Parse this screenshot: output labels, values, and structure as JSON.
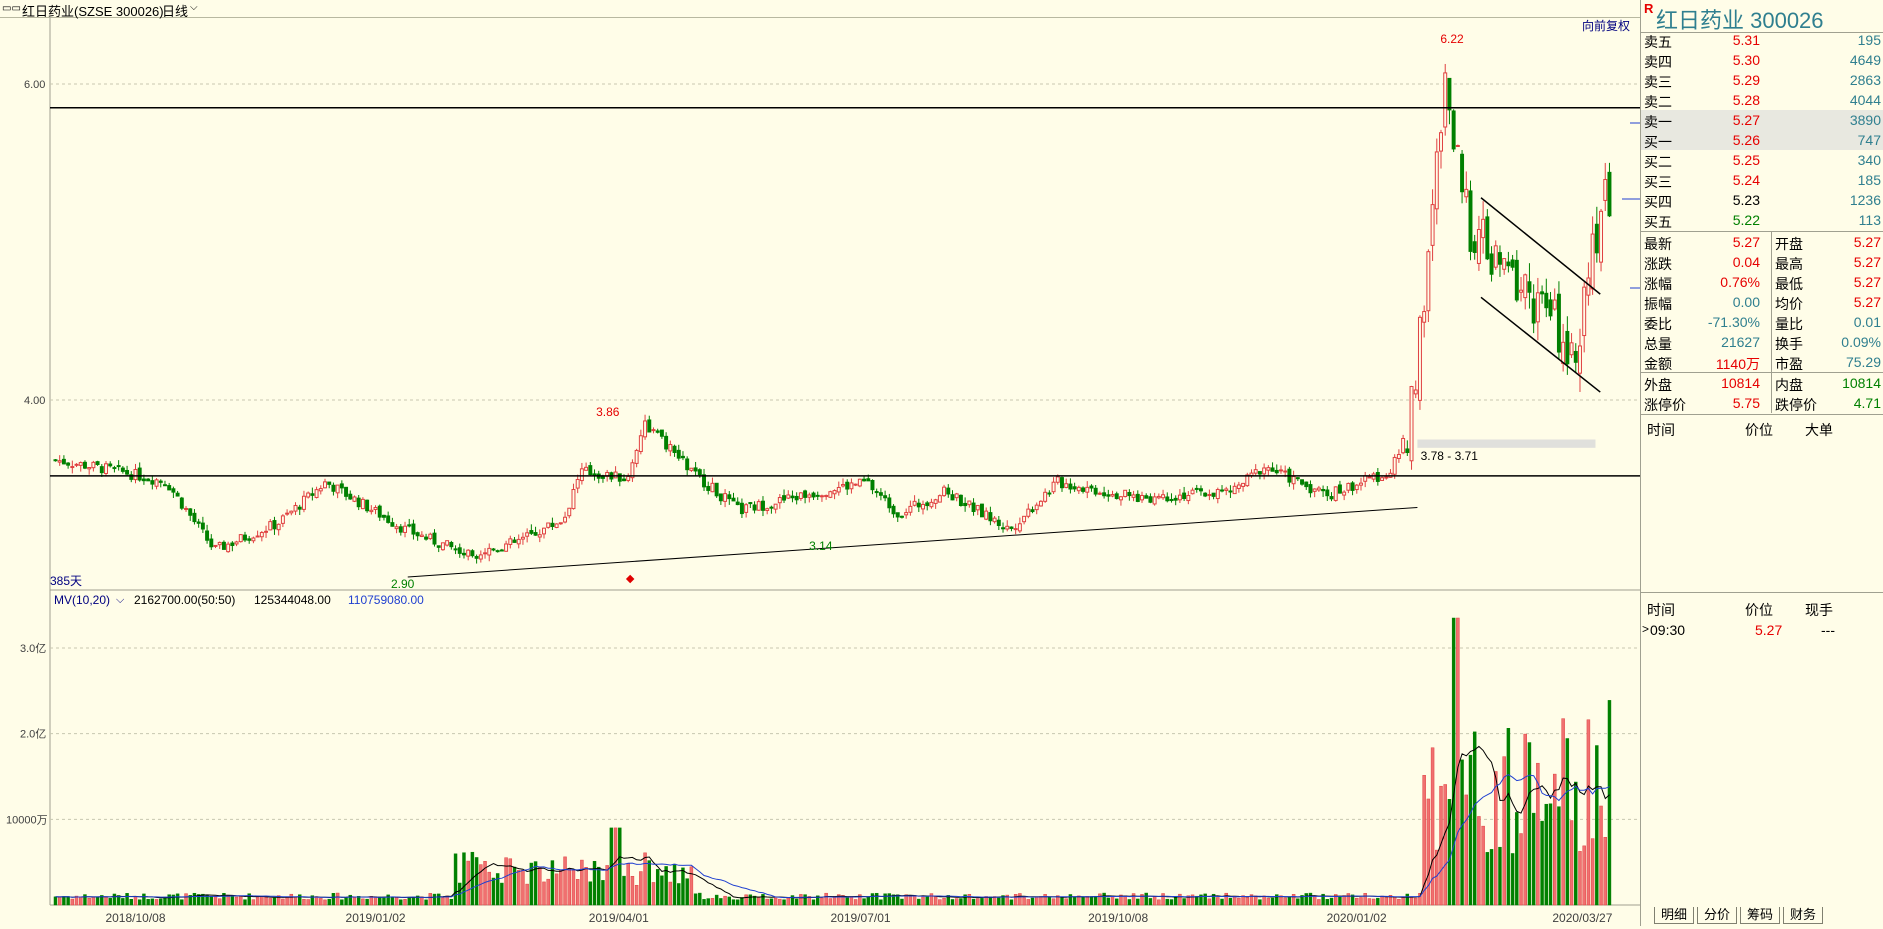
{
  "header": {
    "icon_text": "▭▭",
    "title": "红日药业(SZSE 300026)",
    "period": "日线",
    "restore": "向前复权"
  },
  "price_axis": {
    "labels": [
      {
        "v": 6.0,
        "t": "6.00"
      },
      {
        "v": 4.0,
        "t": "4.00"
      }
    ]
  },
  "annotations": {
    "high_label": "6.22",
    "peak_label": "3.86",
    "low_label": "2.90",
    "low2_label": "3.14",
    "range_label": "3.78 - 3.71",
    "days_label": "385天"
  },
  "volume_header": {
    "name": "MV(10,20)",
    "v1": "2162700.00(50:50)",
    "v2": "125344048.00",
    "v3": "110759080.00"
  },
  "volume_axis": {
    "labels": [
      {
        "v": 3.0,
        "t": "3.0亿"
      },
      {
        "v": 2.0,
        "t": "2.0亿"
      },
      {
        "v": 1.0,
        "t": "10000万"
      }
    ]
  },
  "date_axis": [
    {
      "t": "2018/10/08",
      "f": 0.055
    },
    {
      "t": "2019/01/02",
      "f": 0.206
    },
    {
      "t": "2019/04/01",
      "f": 0.359
    },
    {
      "t": "2019/07/01",
      "f": 0.511
    },
    {
      "t": "2019/10/08",
      "f": 0.673
    },
    {
      "t": "2020/01/02",
      "f": 0.823
    },
    {
      "t": "2020/03/27",
      "f": 0.965
    }
  ],
  "chart_data": {
    "type": "candlestick",
    "title": "红日药业(SZSE 300026) 日线",
    "x_range": [
      "2018/09",
      "2020/03/27"
    ],
    "ylim": [
      2.85,
      6.3
    ],
    "price_anchors": [
      {
        "f": 0.0,
        "p": 3.62
      },
      {
        "f": 0.04,
        "p": 3.55
      },
      {
        "f": 0.07,
        "p": 3.48
      },
      {
        "f": 0.1,
        "p": 3.05
      },
      {
        "f": 0.14,
        "p": 3.22
      },
      {
        "f": 0.17,
        "p": 3.48
      },
      {
        "f": 0.22,
        "p": 3.18
      },
      {
        "f": 0.26,
        "p": 3.02
      },
      {
        "f": 0.29,
        "p": 3.1
      },
      {
        "f": 0.32,
        "p": 3.25
      },
      {
        "f": 0.33,
        "p": 3.55
      },
      {
        "f": 0.36,
        "p": 3.5
      },
      {
        "f": 0.37,
        "p": 3.86
      },
      {
        "f": 0.4,
        "p": 3.55
      },
      {
        "f": 0.43,
        "p": 3.3
      },
      {
        "f": 0.48,
        "p": 3.42
      },
      {
        "f": 0.51,
        "p": 3.48
      },
      {
        "f": 0.53,
        "p": 3.28
      },
      {
        "f": 0.56,
        "p": 3.42
      },
      {
        "f": 0.6,
        "p": 3.18
      },
      {
        "f": 0.63,
        "p": 3.48
      },
      {
        "f": 0.68,
        "p": 3.38
      },
      {
        "f": 0.74,
        "p": 3.42
      },
      {
        "f": 0.76,
        "p": 3.58
      },
      {
        "f": 0.8,
        "p": 3.4
      },
      {
        "f": 0.84,
        "p": 3.55
      },
      {
        "f": 0.85,
        "p": 3.78
      },
      {
        "f": 0.86,
        "p": 4.6
      },
      {
        "f": 0.87,
        "p": 5.6
      },
      {
        "f": 0.875,
        "p": 6.05
      },
      {
        "f": 0.885,
        "p": 5.2
      },
      {
        "f": 0.905,
        "p": 4.85
      },
      {
        "f": 0.925,
        "p": 4.7
      },
      {
        "f": 0.945,
        "p": 4.45
      },
      {
        "f": 0.955,
        "p": 4.35
      },
      {
        "f": 0.965,
        "p": 4.75
      },
      {
        "f": 0.972,
        "p": 5.3
      },
      {
        "f": 0.98,
        "p": 5.27
      }
    ],
    "key_points": [
      {
        "label": "6.22",
        "price": 6.22
      },
      {
        "label": "3.86",
        "price": 3.86
      },
      {
        "label": "2.90",
        "price": 2.9
      },
      {
        "label": "3.14",
        "price": 3.14
      }
    ],
    "horizontal_levels": [
      5.85,
      3.52
    ],
    "volume_ylim": [
      0,
      3.4
    ],
    "volume_unit": "亿",
    "volume_peaks": [
      {
        "f": 0.352,
        "v": 0.9
      },
      {
        "f": 0.88,
        "v": 3.35
      },
      {
        "f": 0.87,
        "v": 1.9
      },
      {
        "f": 0.978,
        "v": 2.5
      }
    ]
  },
  "quote": {
    "stock_title": "红日药业  300026",
    "badge": "R",
    "order_book": [
      {
        "label": "卖五",
        "price": "5.31",
        "vol": "195",
        "pc": "red"
      },
      {
        "label": "卖四",
        "price": "5.30",
        "vol": "4649",
        "pc": "red"
      },
      {
        "label": "卖三",
        "price": "5.29",
        "vol": "2863",
        "pc": "red"
      },
      {
        "label": "卖二",
        "price": "5.28",
        "vol": "4044",
        "pc": "red"
      },
      {
        "label": "卖一",
        "price": "5.27",
        "vol": "3890",
        "pc": "red",
        "hl": true
      },
      {
        "label": "买一",
        "price": "5.26",
        "vol": "747",
        "pc": "red",
        "hl": true
      },
      {
        "label": "买二",
        "price": "5.25",
        "vol": "340",
        "pc": "red"
      },
      {
        "label": "买三",
        "price": "5.24",
        "vol": "185",
        "pc": "red"
      },
      {
        "label": "买四",
        "price": "5.23",
        "vol": "1236",
        "pc": "blk"
      },
      {
        "label": "买五",
        "price": "5.22",
        "vol": "113",
        "pc": "green"
      }
    ],
    "stats": [
      {
        "l1": "最新",
        "v1": "5.27",
        "c1": "red",
        "l2": "开盘",
        "v2": "5.27",
        "c2": "red"
      },
      {
        "l1": "涨跌",
        "v1": "0.04",
        "c1": "red",
        "l2": "最高",
        "v2": "5.27",
        "c2": "red"
      },
      {
        "l1": "涨幅",
        "v1": "0.76%",
        "c1": "red",
        "l2": "最低",
        "v2": "5.27",
        "c2": "red"
      },
      {
        "l1": "振幅",
        "v1": "0.00",
        "c1": "teal",
        "l2": "均价",
        "v2": "5.27",
        "c2": "red"
      },
      {
        "l1": "委比",
        "v1": "-71.30%",
        "c1": "teal",
        "l2": "量比",
        "v2": "0.01",
        "c2": "teal"
      },
      {
        "l1": "总量",
        "v1": "21627",
        "c1": "teal",
        "l2": "换手",
        "v2": "0.09%",
        "c2": "teal"
      },
      {
        "l1": "金额",
        "v1": "1140万",
        "c1": "red",
        "l2": "市盈",
        "v2": "75.29",
        "c2": "teal"
      }
    ],
    "stats2": [
      {
        "l1": "外盘",
        "v1": "10814",
        "c1": "red",
        "l2": "内盘",
        "v2": "10814",
        "c2": "green"
      },
      {
        "l1": "涨停价",
        "v1": "5.75",
        "c1": "red",
        "l2": "跌停价",
        "v2": "4.71",
        "c2": "green"
      }
    ],
    "detail_header": [
      "时间",
      "价位",
      "大单"
    ],
    "tick_header": [
      "时间",
      "价位",
      "现手"
    ],
    "tick_row": {
      "time": "09:30",
      "price": "5.27",
      "vol": "---",
      "marker": ">"
    },
    "tabs": [
      "明细",
      "分价",
      "筹码",
      "财务"
    ]
  },
  "colors": {
    "up": "#f07070",
    "down": "#008000",
    "background": "#fffde8",
    "mv10": "#000000",
    "mv20": "#2040d0",
    "label_red": "#e60000"
  }
}
